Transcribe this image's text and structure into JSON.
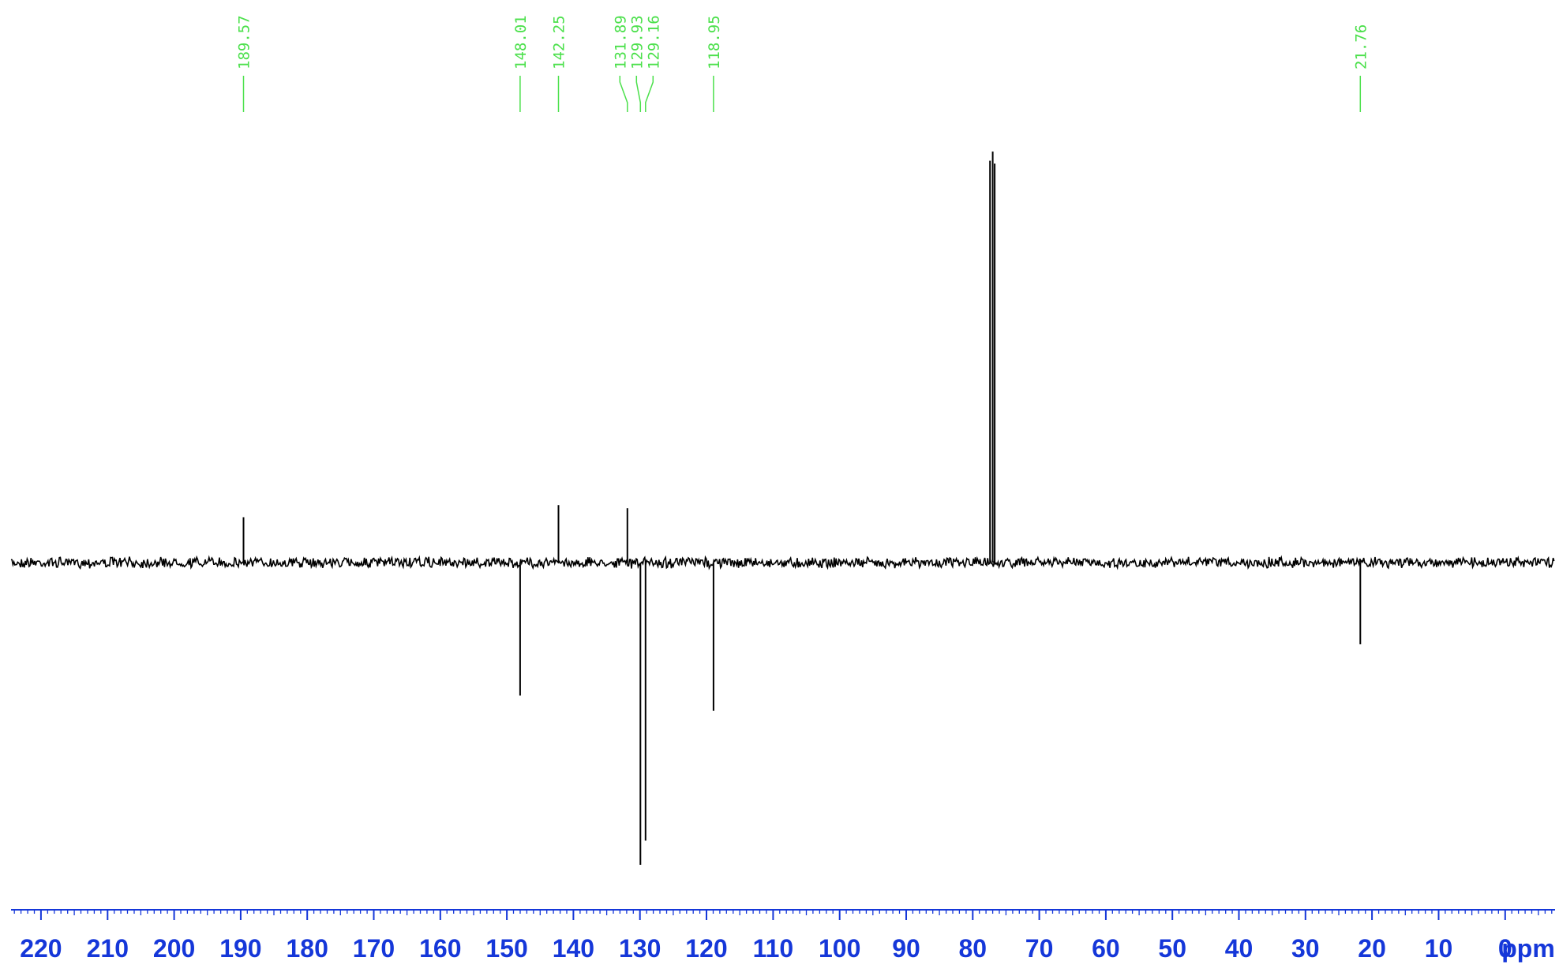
{
  "chart_data": {
    "type": "line",
    "title": "",
    "xlabel": "ppm",
    "ylabel": "",
    "x_axis": {
      "reversed": true,
      "range_ppm": [
        224.5,
        -7.5
      ],
      "major_ticks": [
        220,
        210,
        200,
        190,
        180,
        170,
        160,
        150,
        140,
        130,
        120,
        110,
        100,
        90,
        80,
        70,
        60,
        50,
        40,
        30,
        20,
        10,
        0
      ],
      "tick_labels": [
        "220",
        "210",
        "200",
        "190",
        "180",
        "170",
        "160",
        "150",
        "140",
        "130",
        "120",
        "110",
        "100",
        "90",
        "80",
        "70",
        "60",
        "50",
        "40",
        "30",
        "20",
        "10",
        "0"
      ],
      "minor_tick_step": 1,
      "unit_label": "ppm"
    },
    "y_range": [
      -1.0,
      1.25
    ],
    "grid": false,
    "legend": "none",
    "peak_labels": [
      "189.57",
      "148.01",
      "142.25",
      "131.89",
      "129.93",
      "129.16",
      "118.95",
      "21.76"
    ],
    "peaks": [
      {
        "ppm": 189.57,
        "intensity": 0.15
      },
      {
        "ppm": 148.01,
        "intensity": -0.44
      },
      {
        "ppm": 142.25,
        "intensity": 0.19
      },
      {
        "ppm": 131.89,
        "intensity": 0.18
      },
      {
        "ppm": 129.93,
        "intensity": -1.0
      },
      {
        "ppm": 129.16,
        "intensity": -0.92
      },
      {
        "ppm": 118.95,
        "intensity": -0.49
      },
      {
        "ppm": 77.4,
        "intensity": 1.33
      },
      {
        "ppm": 77.0,
        "intensity": 1.36
      },
      {
        "ppm": 76.7,
        "intensity": 1.32
      },
      {
        "ppm": 21.76,
        "intensity": -0.27
      }
    ],
    "colors": {
      "spectrum": "#000000",
      "peak_label": "#4be04b",
      "axis": "#1537d9"
    }
  }
}
